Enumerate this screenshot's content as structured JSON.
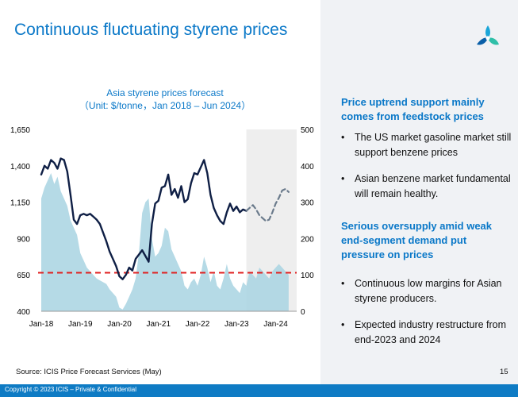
{
  "slide": {
    "title": "Continuous fluctuating styrene prices",
    "page_number": "15",
    "source": "Source: ICIS Price Forecast Services (May)",
    "copyright": "Copyright © 2023 ICIS – Private & Confidential"
  },
  "panel": {
    "heading1": "Price uptrend support mainly comes from feedstock prices",
    "bullets1": [
      "The US market gasoline market still support benzene prices",
      "Asian benzene market fundamental will remain healthy."
    ],
    "heading2": "Serious oversupply amid weak end-segment demand put pressure on prices",
    "bullets2": [
      "Continuous low margins for Asian styrene producers.",
      "Expected industry restructure from end-2023 and 2024"
    ]
  },
  "colors": {
    "accent": "#0a78c8",
    "price_line": "#0f1f45",
    "forecast_line": "#6b7b8c",
    "margin_area": "#a8d3e2",
    "reference_line": "#e02020",
    "forecast_band": "#eeeeee",
    "footer": "#0e7bc4"
  },
  "chart_data": {
    "type": "line",
    "title": "Asia styrene prices forecast",
    "subtitle": "（Unit: $/tonne，Jan 2018 – Jun 2024）",
    "x_tick_labels": [
      "Jan-18",
      "Jan-19",
      "Jan-20",
      "Jan-21",
      "Jan-22",
      "Jan-23",
      "Jan-24"
    ],
    "x_tick_months": [
      0,
      12,
      24,
      36,
      48,
      60,
      72
    ],
    "x_range": [
      0,
      77
    ],
    "left_axis": {
      "ylim": [
        400,
        1650
      ],
      "ticks": [
        "400",
        "650",
        "900",
        "1,150",
        "1,400",
        "1,650"
      ]
    },
    "right_axis": {
      "ylim": [
        0,
        500
      ],
      "ticks": [
        "0",
        "100",
        "200",
        "300",
        "400",
        "500"
      ]
    },
    "forecast_start_month": 63,
    "reference_line_left_value": 665,
    "series": [
      {
        "name": "Styrene price (actual)",
        "axis": "left",
        "style": "solid",
        "points": [
          [
            0,
            1340
          ],
          [
            1,
            1400
          ],
          [
            2,
            1380
          ],
          [
            3,
            1440
          ],
          [
            4,
            1420
          ],
          [
            5,
            1380
          ],
          [
            6,
            1450
          ],
          [
            7,
            1440
          ],
          [
            8,
            1360
          ],
          [
            9,
            1200
          ],
          [
            10,
            1030
          ],
          [
            11,
            1000
          ],
          [
            12,
            1060
          ],
          [
            13,
            1070
          ],
          [
            14,
            1060
          ],
          [
            15,
            1070
          ],
          [
            16,
            1050
          ],
          [
            17,
            1030
          ],
          [
            18,
            1000
          ],
          [
            19,
            940
          ],
          [
            20,
            880
          ],
          [
            21,
            810
          ],
          [
            22,
            760
          ],
          [
            23,
            710
          ],
          [
            24,
            640
          ],
          [
            25,
            620
          ],
          [
            26,
            650
          ],
          [
            27,
            700
          ],
          [
            28,
            680
          ],
          [
            29,
            760
          ],
          [
            30,
            790
          ],
          [
            31,
            820
          ],
          [
            32,
            780
          ],
          [
            33,
            740
          ],
          [
            34,
            1000
          ],
          [
            35,
            1140
          ],
          [
            36,
            1160
          ],
          [
            37,
            1250
          ],
          [
            38,
            1260
          ],
          [
            39,
            1340
          ],
          [
            40,
            1200
          ],
          [
            41,
            1240
          ],
          [
            42,
            1180
          ],
          [
            43,
            1260
          ],
          [
            44,
            1150
          ],
          [
            45,
            1170
          ],
          [
            46,
            1280
          ],
          [
            47,
            1350
          ],
          [
            48,
            1340
          ],
          [
            49,
            1390
          ],
          [
            50,
            1440
          ],
          [
            51,
            1350
          ],
          [
            52,
            1200
          ],
          [
            53,
            1110
          ],
          [
            54,
            1060
          ],
          [
            55,
            1020
          ],
          [
            56,
            1000
          ],
          [
            57,
            1080
          ],
          [
            58,
            1140
          ],
          [
            59,
            1090
          ],
          [
            60,
            1120
          ],
          [
            61,
            1080
          ],
          [
            62,
            1100
          ],
          [
            63,
            1090
          ]
        ]
      },
      {
        "name": "Styrene price (forecast)",
        "axis": "left",
        "style": "dashed",
        "points": [
          [
            63,
            1090
          ],
          [
            64,
            1110
          ],
          [
            65,
            1130
          ],
          [
            66,
            1100
          ],
          [
            67,
            1060
          ],
          [
            68,
            1040
          ],
          [
            69,
            1020
          ],
          [
            70,
            1030
          ],
          [
            71,
            1080
          ],
          [
            72,
            1140
          ],
          [
            73,
            1180
          ],
          [
            74,
            1230
          ],
          [
            75,
            1240
          ],
          [
            76,
            1220
          ]
        ]
      },
      {
        "name": "Margin",
        "axis": "right",
        "style": "area",
        "points": [
          [
            0,
            310
          ],
          [
            1,
            340
          ],
          [
            2,
            360
          ],
          [
            3,
            380
          ],
          [
            4,
            350
          ],
          [
            5,
            370
          ],
          [
            6,
            330
          ],
          [
            7,
            310
          ],
          [
            8,
            290
          ],
          [
            9,
            250
          ],
          [
            10,
            230
          ],
          [
            11,
            210
          ],
          [
            12,
            160
          ],
          [
            13,
            140
          ],
          [
            14,
            120
          ],
          [
            15,
            110
          ],
          [
            16,
            100
          ],
          [
            17,
            90
          ],
          [
            18,
            85
          ],
          [
            19,
            80
          ],
          [
            20,
            75
          ],
          [
            21,
            60
          ],
          [
            22,
            50
          ],
          [
            23,
            40
          ],
          [
            24,
            10
          ],
          [
            25,
            5
          ],
          [
            26,
            20
          ],
          [
            27,
            40
          ],
          [
            28,
            60
          ],
          [
            29,
            90
          ],
          [
            30,
            160
          ],
          [
            31,
            270
          ],
          [
            32,
            300
          ],
          [
            33,
            310
          ],
          [
            34,
            200
          ],
          [
            35,
            150
          ],
          [
            36,
            160
          ],
          [
            37,
            180
          ],
          [
            38,
            230
          ],
          [
            39,
            220
          ],
          [
            40,
            170
          ],
          [
            41,
            150
          ],
          [
            42,
            130
          ],
          [
            43,
            110
          ],
          [
            44,
            70
          ],
          [
            45,
            60
          ],
          [
            46,
            80
          ],
          [
            47,
            90
          ],
          [
            48,
            70
          ],
          [
            49,
            100
          ],
          [
            50,
            150
          ],
          [
            51,
            120
          ],
          [
            52,
            80
          ],
          [
            53,
            110
          ],
          [
            54,
            70
          ],
          [
            55,
            60
          ],
          [
            56,
            90
          ],
          [
            57,
            130
          ],
          [
            58,
            90
          ],
          [
            59,
            70
          ],
          [
            60,
            60
          ],
          [
            61,
            50
          ],
          [
            62,
            80
          ],
          [
            63,
            70
          ],
          [
            64,
            110
          ],
          [
            65,
            100
          ],
          [
            66,
            90
          ],
          [
            67,
            120
          ],
          [
            68,
            110
          ],
          [
            69,
            100
          ],
          [
            70,
            90
          ],
          [
            71,
            110
          ],
          [
            72,
            120
          ],
          [
            73,
            130
          ],
          [
            74,
            120
          ],
          [
            75,
            110
          ],
          [
            76,
            100
          ]
        ]
      }
    ]
  }
}
